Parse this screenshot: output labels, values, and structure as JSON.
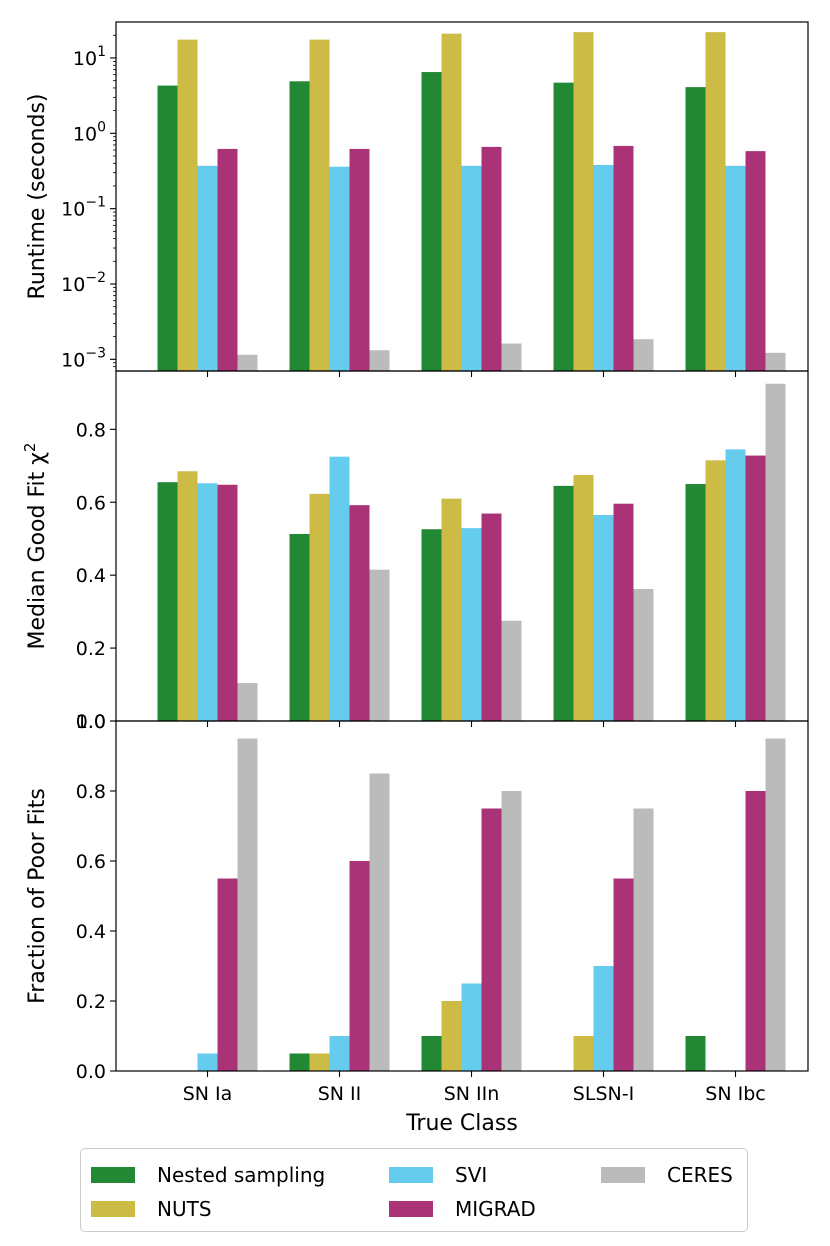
{
  "chart_data": [
    {
      "type": "bar",
      "panel": "runtime",
      "yscale": "log",
      "ylabel": "Runtime (seconds)",
      "ylim": [
        0.0007,
        30
      ],
      "yticks": [
        0.001,
        0.01,
        0.1,
        1,
        10
      ],
      "ytick_labels": [
        {
          "base": "10",
          "exp": "−3"
        },
        {
          "base": "10",
          "exp": "−2"
        },
        {
          "base": "10",
          "exp": "−1"
        },
        {
          "base": "10",
          "exp": "0"
        },
        {
          "base": "10",
          "exp": "1"
        }
      ],
      "categories": [
        "SN Ia",
        "SN II",
        "SN IIn",
        "SLSN-I",
        "SN Ibc"
      ],
      "series": [
        {
          "name": "Nested sampling",
          "values": [
            4.3,
            4.9,
            6.5,
            4.7,
            4.1
          ]
        },
        {
          "name": "NUTS",
          "values": [
            17.5,
            17.5,
            21,
            22,
            22
          ]
        },
        {
          "name": "SVI",
          "values": [
            0.37,
            0.36,
            0.37,
            0.38,
            0.37
          ]
        },
        {
          "name": "MIGRAD",
          "values": [
            0.62,
            0.62,
            0.66,
            0.68,
            0.58
          ]
        },
        {
          "name": "CERES",
          "values": [
            0.00115,
            0.00132,
            0.00162,
            0.00185,
            0.00122
          ]
        }
      ]
    },
    {
      "type": "bar",
      "panel": "median-chi2",
      "ylabel": "Median Good Fit χ",
      "ylabel_sup": "2",
      "ylim": [
        0,
        0.96
      ],
      "yticks": [
        0.0,
        0.2,
        0.4,
        0.6,
        0.8
      ],
      "ytick_labels": [
        "0.0",
        "0.2",
        "0.4",
        "0.6",
        "0.8"
      ],
      "categories": [
        "SN Ia",
        "SN II",
        "SN IIn",
        "SLSN-I",
        "SN Ibc"
      ],
      "series": [
        {
          "name": "Nested sampling",
          "values": [
            0.655,
            0.513,
            0.526,
            0.645,
            0.65
          ]
        },
        {
          "name": "NUTS",
          "values": [
            0.685,
            0.623,
            0.61,
            0.675,
            0.715
          ]
        },
        {
          "name": "SVI",
          "values": [
            0.652,
            0.725,
            0.529,
            0.565,
            0.745
          ]
        },
        {
          "name": "MIGRAD",
          "values": [
            0.648,
            0.592,
            0.569,
            0.596,
            0.728
          ]
        },
        {
          "name": "CERES",
          "values": [
            0.104,
            0.415,
            0.275,
            0.362,
            0.925
          ]
        }
      ]
    },
    {
      "type": "bar",
      "panel": "poor-fits",
      "ylabel": "Fraction of Poor Fits",
      "xlabel": "True Class",
      "ylim": [
        0,
        1.0
      ],
      "yticks": [
        0.0,
        0.2,
        0.4,
        0.6,
        0.8,
        1.0
      ],
      "ytick_labels": [
        "0.0",
        "0.2",
        "0.4",
        "0.6",
        "0.8",
        "1.0"
      ],
      "categories": [
        "SN Ia",
        "SN II",
        "SN IIn",
        "SLSN-I",
        "SN Ibc"
      ],
      "series": [
        {
          "name": "Nested sampling",
          "values": [
            0.0,
            0.05,
            0.1,
            0.0,
            0.1
          ]
        },
        {
          "name": "NUTS",
          "values": [
            0.0,
            0.05,
            0.2,
            0.1,
            0.0
          ]
        },
        {
          "name": "SVI",
          "values": [
            0.05,
            0.1,
            0.25,
            0.3,
            0.0
          ]
        },
        {
          "name": "MIGRAD",
          "values": [
            0.55,
            0.6,
            0.75,
            0.55,
            0.8
          ]
        },
        {
          "name": "CERES",
          "values": [
            0.95,
            0.85,
            0.8,
            0.75,
            0.95
          ]
        }
      ]
    }
  ],
  "legend": {
    "items": [
      {
        "label": "Nested sampling",
        "color": "#228833"
      },
      {
        "label": "NUTS",
        "color": "#ccbb44"
      },
      {
        "label": "SVI",
        "color": "#66ccee"
      },
      {
        "label": "MIGRAD",
        "color": "#aa3377"
      },
      {
        "label": "CERES",
        "color": "#bbbbbb"
      }
    ]
  }
}
